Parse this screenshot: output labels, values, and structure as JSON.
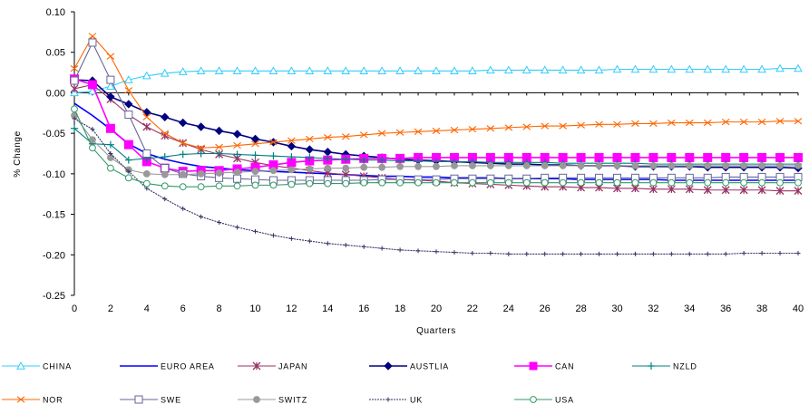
{
  "chart_data": {
    "type": "line",
    "title": "",
    "xlabel": "Quarters",
    "ylabel": "% Change",
    "xlim": [
      0,
      40
    ],
    "ylim": [
      -0.25,
      0.1
    ],
    "x_ticks": [
      0,
      2,
      4,
      6,
      8,
      10,
      12,
      14,
      16,
      18,
      20,
      22,
      24,
      26,
      28,
      30,
      32,
      34,
      36,
      38,
      40
    ],
    "y_ticks": [
      0.1,
      0.05,
      0.0,
      -0.05,
      -0.1,
      -0.15,
      -0.2,
      -0.25
    ],
    "y_tick_labels": [
      "0.10",
      "0.05",
      "0.00",
      "-0.05",
      "-0.10",
      "-0.15",
      "-0.20",
      "-0.25"
    ],
    "grid": false,
    "legend_position": "bottom",
    "x": [
      0,
      1,
      2,
      3,
      4,
      5,
      6,
      7,
      8,
      9,
      10,
      11,
      12,
      13,
      14,
      15,
      16,
      17,
      18,
      19,
      20,
      21,
      22,
      23,
      24,
      25,
      26,
      27,
      28,
      29,
      30,
      31,
      32,
      33,
      34,
      35,
      36,
      37,
      38,
      39,
      40
    ],
    "series": [
      {
        "name": "CHINA",
        "color": "#33ccff",
        "marker": "triangle",
        "values": [
          0.0,
          0.002,
          0.008,
          0.016,
          0.021,
          0.024,
          0.026,
          0.027,
          0.027,
          0.027,
          0.027,
          0.027,
          0.027,
          0.027,
          0.027,
          0.027,
          0.027,
          0.027,
          0.027,
          0.027,
          0.027,
          0.027,
          0.027,
          0.028,
          0.028,
          0.028,
          0.028,
          0.028,
          0.028,
          0.028,
          0.029,
          0.029,
          0.029,
          0.029,
          0.029,
          0.029,
          0.029,
          0.029,
          0.029,
          0.03,
          0.03
        ]
      },
      {
        "name": "EURO AREA",
        "color": "#0000ff",
        "marker": "none",
        "values": [
          -0.013,
          -0.028,
          -0.045,
          -0.063,
          -0.075,
          -0.082,
          -0.087,
          -0.091,
          -0.093,
          -0.095,
          -0.096,
          -0.097,
          -0.098,
          -0.099,
          -0.1,
          -0.101,
          -0.102,
          -0.103,
          -0.103,
          -0.104,
          -0.104,
          -0.105,
          -0.105,
          -0.105,
          -0.106,
          -0.106,
          -0.106,
          -0.106,
          -0.107,
          -0.107,
          -0.107,
          -0.107,
          -0.107,
          -0.108,
          -0.108,
          -0.108,
          -0.108,
          -0.108,
          -0.108,
          -0.108,
          -0.108
        ]
      },
      {
        "name": "JAPAN",
        "color": "#993366",
        "marker": "star",
        "values": [
          0.005,
          0.01,
          -0.008,
          -0.027,
          -0.042,
          -0.053,
          -0.062,
          -0.07,
          -0.076,
          -0.081,
          -0.086,
          -0.09,
          -0.093,
          -0.096,
          -0.099,
          -0.101,
          -0.103,
          -0.105,
          -0.107,
          -0.108,
          -0.109,
          -0.111,
          -0.112,
          -0.113,
          -0.114,
          -0.115,
          -0.116,
          -0.116,
          -0.117,
          -0.117,
          -0.118,
          -0.118,
          -0.119,
          -0.119,
          -0.119,
          -0.12,
          -0.12,
          -0.12,
          -0.12,
          -0.121,
          -0.121
        ]
      },
      {
        "name": "AUSTLIA",
        "color": "#000080",
        "marker": "diamond",
        "values": [
          0.016,
          0.015,
          -0.005,
          -0.014,
          -0.024,
          -0.03,
          -0.037,
          -0.042,
          -0.047,
          -0.051,
          -0.057,
          -0.061,
          -0.066,
          -0.07,
          -0.073,
          -0.076,
          -0.078,
          -0.08,
          -0.082,
          -0.083,
          -0.084,
          -0.085,
          -0.086,
          -0.087,
          -0.088,
          -0.088,
          -0.089,
          -0.089,
          -0.09,
          -0.09,
          -0.09,
          -0.091,
          -0.091,
          -0.091,
          -0.091,
          -0.092,
          -0.092,
          -0.092,
          -0.092,
          -0.092,
          -0.093
        ]
      },
      {
        "name": "CAN",
        "color": "#ff00ff",
        "marker": "square",
        "values": [
          0.017,
          0.01,
          -0.044,
          -0.064,
          -0.085,
          -0.093,
          -0.097,
          -0.096,
          -0.096,
          -0.094,
          -0.092,
          -0.089,
          -0.086,
          -0.084,
          -0.083,
          -0.082,
          -0.081,
          -0.081,
          -0.081,
          -0.08,
          -0.08,
          -0.08,
          -0.08,
          -0.08,
          -0.08,
          -0.08,
          -0.08,
          -0.08,
          -0.08,
          -0.08,
          -0.08,
          -0.08,
          -0.08,
          -0.08,
          -0.08,
          -0.08,
          -0.08,
          -0.08,
          -0.08,
          -0.08,
          -0.08
        ]
      },
      {
        "name": "NZLD",
        "color": "#008080",
        "marker": "plus",
        "values": [
          -0.044,
          -0.063,
          -0.064,
          -0.083,
          -0.081,
          -0.079,
          -0.076,
          -0.075,
          -0.075,
          -0.076,
          -0.077,
          -0.078,
          -0.079,
          -0.08,
          -0.081,
          -0.082,
          -0.083,
          -0.083,
          -0.084,
          -0.084,
          -0.085,
          -0.085,
          -0.085,
          -0.086,
          -0.086,
          -0.086,
          -0.086,
          -0.087,
          -0.087,
          -0.087,
          -0.087,
          -0.087,
          -0.088,
          -0.088,
          -0.088,
          -0.088,
          -0.088,
          -0.088,
          -0.088,
          -0.088,
          -0.088
        ]
      },
      {
        "name": "NOR",
        "color": "#ff6600",
        "marker": "x",
        "values": [
          0.03,
          0.07,
          0.045,
          0.003,
          -0.03,
          -0.05,
          -0.062,
          -0.068,
          -0.067,
          -0.065,
          -0.063,
          -0.061,
          -0.059,
          -0.057,
          -0.055,
          -0.054,
          -0.052,
          -0.05,
          -0.049,
          -0.048,
          -0.047,
          -0.046,
          -0.045,
          -0.044,
          -0.043,
          -0.042,
          -0.041,
          -0.041,
          -0.04,
          -0.039,
          -0.039,
          -0.038,
          -0.038,
          -0.037,
          -0.037,
          -0.037,
          -0.036,
          -0.036,
          -0.036,
          -0.035,
          -0.035
        ]
      },
      {
        "name": "SWE",
        "color": "#666699",
        "marker": "square-open",
        "values": [
          0.015,
          0.062,
          0.016,
          -0.027,
          -0.075,
          -0.093,
          -0.1,
          -0.103,
          -0.105,
          -0.106,
          -0.107,
          -0.108,
          -0.108,
          -0.108,
          -0.108,
          -0.108,
          -0.108,
          -0.107,
          -0.107,
          -0.107,
          -0.107,
          -0.106,
          -0.106,
          -0.106,
          -0.106,
          -0.106,
          -0.105,
          -0.105,
          -0.105,
          -0.105,
          -0.105,
          -0.105,
          -0.105,
          -0.105,
          -0.105,
          -0.105,
          -0.104,
          -0.104,
          -0.104,
          -0.104,
          -0.104
        ]
      },
      {
        "name": "SWITZ",
        "color": "#999999",
        "marker": "circle",
        "values": [
          -0.028,
          -0.058,
          -0.08,
          -0.095,
          -0.1,
          -0.101,
          -0.101,
          -0.1,
          -0.099,
          -0.098,
          -0.097,
          -0.096,
          -0.095,
          -0.094,
          -0.093,
          -0.093,
          -0.092,
          -0.092,
          -0.091,
          -0.091,
          -0.091,
          -0.09,
          -0.09,
          -0.09,
          -0.09,
          -0.09,
          -0.09,
          -0.09,
          -0.09,
          -0.09,
          -0.09,
          -0.09,
          -0.09,
          -0.09,
          -0.09,
          -0.09,
          -0.09,
          -0.09,
          -0.09,
          -0.09,
          -0.09
        ]
      },
      {
        "name": "UK",
        "color": "#333366",
        "marker": "small-plus",
        "values": [
          -0.032,
          -0.045,
          -0.075,
          -0.097,
          -0.118,
          -0.131,
          -0.143,
          -0.153,
          -0.16,
          -0.166,
          -0.171,
          -0.176,
          -0.18,
          -0.183,
          -0.186,
          -0.188,
          -0.19,
          -0.192,
          -0.194,
          -0.195,
          -0.196,
          -0.197,
          -0.198,
          -0.198,
          -0.199,
          -0.199,
          -0.199,
          -0.199,
          -0.199,
          -0.199,
          -0.199,
          -0.199,
          -0.199,
          -0.199,
          -0.199,
          -0.199,
          -0.199,
          -0.198,
          -0.198,
          -0.198,
          -0.198
        ]
      },
      {
        "name": "USA",
        "color": "#339966",
        "marker": "circle-open",
        "values": [
          -0.02,
          -0.068,
          -0.093,
          -0.105,
          -0.112,
          -0.115,
          -0.116,
          -0.116,
          -0.115,
          -0.115,
          -0.114,
          -0.114,
          -0.113,
          -0.112,
          -0.112,
          -0.112,
          -0.111,
          -0.111,
          -0.111,
          -0.111,
          -0.111,
          -0.111,
          -0.111,
          -0.111,
          -0.111,
          -0.111,
          -0.111,
          -0.111,
          -0.111,
          -0.111,
          -0.111,
          -0.111,
          -0.111,
          -0.111,
          -0.111,
          -0.111,
          -0.111,
          -0.111,
          -0.111,
          -0.111,
          -0.111
        ]
      }
    ]
  }
}
